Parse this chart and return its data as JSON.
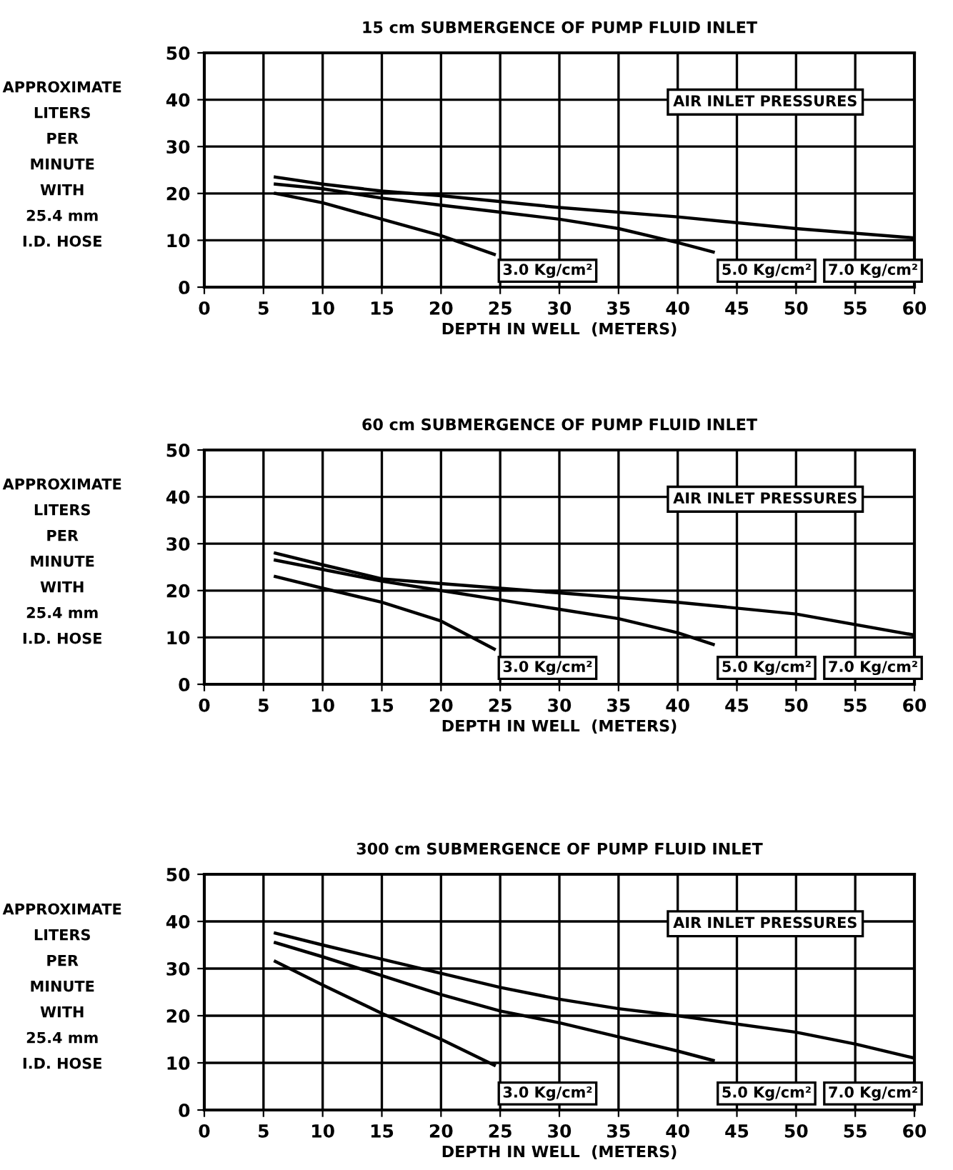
{
  "chart_data": [
    {
      "type": "line",
      "title": "15 cm SUBMERGENCE OF PUMP FLUID INLET",
      "xlabel": "DEPTH IN WELL  (METERS)",
      "ylabel": "APPROXIMATE\nLITERS\nPER\nMINUTE\nWITH\n25.4 mm\nI.D. HOSE",
      "xlim": [
        0,
        60
      ],
      "ylim": [
        0,
        50
      ],
      "xticks": [
        0,
        5,
        10,
        15,
        20,
        25,
        30,
        35,
        40,
        45,
        50,
        55,
        60
      ],
      "yticks": [
        0,
        10,
        20,
        30,
        40,
        50
      ],
      "grid": true,
      "legend": false,
      "marker": "none",
      "line_style": "solid",
      "annotations": [
        "AIR INLET PRESSURES"
      ],
      "series": [
        {
          "name": "3.0 Kg/cm²",
          "color": "#000000",
          "x": [
            6,
            10,
            15,
            20,
            24.5
          ],
          "values": [
            20,
            18,
            14.5,
            11,
            7
          ]
        },
        {
          "name": "5.0 Kg/cm²",
          "color": "#000000",
          "x": [
            6,
            10,
            15,
            20,
            25,
            30,
            35,
            40,
            43
          ],
          "values": [
            22,
            21,
            19,
            17.5,
            16,
            14.5,
            12.5,
            9.5,
            7.5
          ]
        },
        {
          "name": "7.0 Kg/cm²",
          "color": "#000000",
          "x": [
            6,
            10,
            15,
            20,
            30,
            40,
            50,
            60
          ],
          "values": [
            23.5,
            22,
            20.5,
            19.5,
            17,
            15,
            12.5,
            10.5
          ]
        }
      ]
    },
    {
      "type": "line",
      "title": "60 cm SUBMERGENCE OF PUMP FLUID INLET",
      "xlabel": "DEPTH IN WELL  (METERS)",
      "ylabel": "APPROXIMATE\nLITERS\nPER\nMINUTE\nWITH\n25.4 mm\nI.D. HOSE",
      "xlim": [
        0,
        60
      ],
      "ylim": [
        0,
        50
      ],
      "xticks": [
        0,
        5,
        10,
        15,
        20,
        25,
        30,
        35,
        40,
        45,
        50,
        55,
        60
      ],
      "yticks": [
        0,
        10,
        20,
        30,
        40,
        50
      ],
      "grid": true,
      "legend": false,
      "marker": "none",
      "line_style": "solid",
      "annotations": [
        "AIR INLET PRESSURES"
      ],
      "series": [
        {
          "name": "3.0 Kg/cm²",
          "color": "#000000",
          "x": [
            6,
            10,
            15,
            20,
            24.5
          ],
          "values": [
            23,
            20.5,
            17.5,
            13.5,
            7.5
          ]
        },
        {
          "name": "5.0 Kg/cm²",
          "color": "#000000",
          "x": [
            6,
            10,
            15,
            20,
            25,
            30,
            35,
            40,
            43
          ],
          "values": [
            26.5,
            24.5,
            22,
            20,
            18,
            16,
            14,
            11,
            8.5
          ]
        },
        {
          "name": "7.0 Kg/cm²",
          "color": "#000000",
          "x": [
            6,
            10,
            15,
            20,
            30,
            40,
            50,
            60
          ],
          "values": [
            28,
            25.5,
            22.5,
            21.5,
            19.5,
            17.5,
            15,
            10.5
          ]
        }
      ]
    },
    {
      "type": "line",
      "title": "300 cm SUBMERGENCE OF PUMP FLUID INLET",
      "xlabel": "DEPTH IN WELL  (METERS)",
      "ylabel": "APPROXIMATE\nLITERS\nPER\nMINUTE\nWITH\n25.4 mm\nI.D. HOSE",
      "xlim": [
        0,
        60
      ],
      "ylim": [
        0,
        50
      ],
      "xticks": [
        0,
        5,
        10,
        15,
        20,
        25,
        30,
        35,
        40,
        45,
        50,
        55,
        60
      ],
      "yticks": [
        0,
        10,
        20,
        30,
        40,
        50
      ],
      "grid": true,
      "legend": false,
      "marker": "none",
      "line_style": "solid",
      "annotations": [
        "AIR INLET PRESSURES"
      ],
      "series": [
        {
          "name": "3.0 Kg/cm²",
          "color": "#000000",
          "x": [
            6,
            10,
            15,
            20,
            24.5
          ],
          "values": [
            31.5,
            26.5,
            20.5,
            15,
            9.5
          ]
        },
        {
          "name": "5.0 Kg/cm²",
          "color": "#000000",
          "x": [
            6,
            10,
            15,
            20,
            25,
            30,
            35,
            40,
            43
          ],
          "values": [
            35.5,
            32.5,
            28.5,
            24.5,
            21,
            18.5,
            15.5,
            12.5,
            10.5
          ]
        },
        {
          "name": "7.0 Kg/cm²",
          "color": "#000000",
          "x": [
            6,
            10,
            15,
            20,
            25,
            30,
            35,
            40,
            50,
            55,
            60
          ],
          "values": [
            37.5,
            35,
            32,
            29,
            26,
            23.5,
            21.5,
            20,
            16.5,
            14,
            11
          ]
        }
      ]
    }
  ]
}
